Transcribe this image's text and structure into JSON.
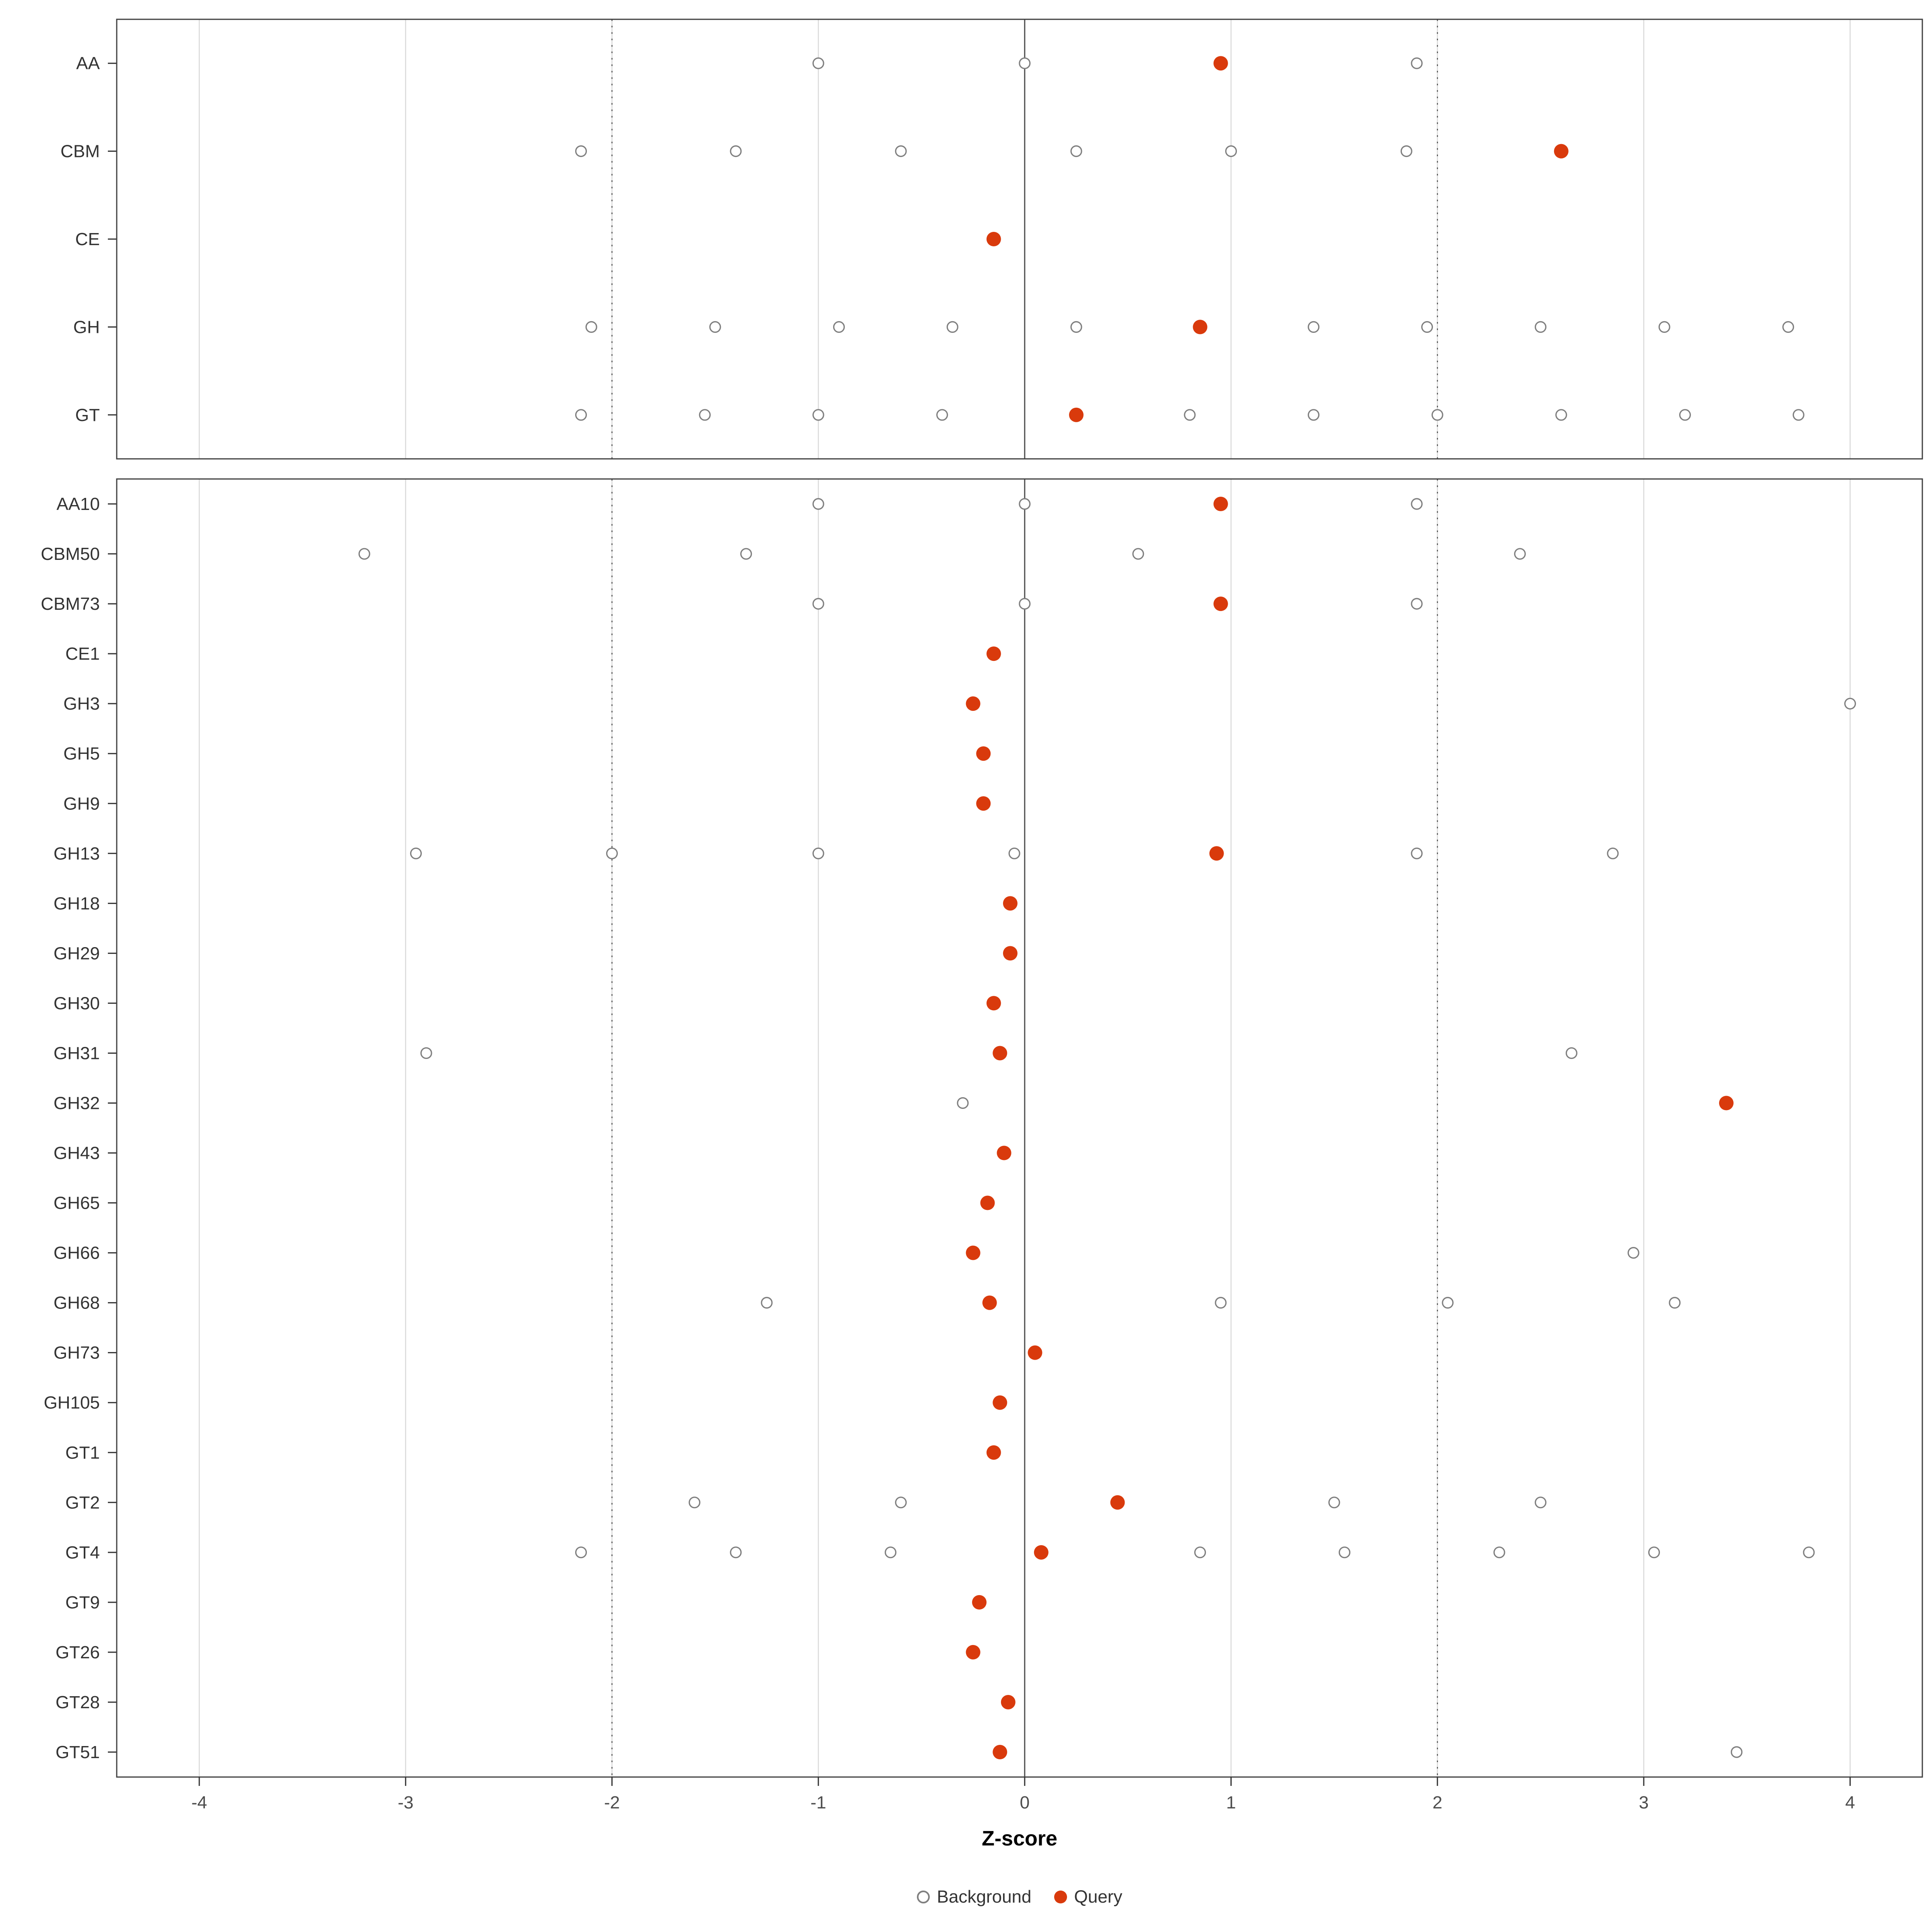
{
  "legend": {
    "background_label": "Background",
    "query_label": "Query"
  },
  "chart_data": {
    "type": "scatter",
    "subtype": "horizontal-dotplot-two-panels",
    "title": "",
    "xlabel": "Z-score",
    "ylabel": "",
    "xlim": [
      -4.4,
      4.35
    ],
    "xticks": [
      -4,
      -3,
      -2,
      -1,
      0,
      1,
      2,
      3,
      4
    ],
    "grid": "vertical-major-only",
    "reference_lines": {
      "solid": [
        0
      ],
      "dotted": [
        -2,
        2
      ]
    },
    "legend_position": "bottom",
    "series_legend": [
      {
        "name": "Background",
        "marker": "open-circle"
      },
      {
        "name": "Query",
        "marker": "filled-circle"
      }
    ],
    "colors": {
      "query": "#d93a0c",
      "background_stroke": "#7f7f7f",
      "grid": "#d9d9d9",
      "panel_border": "#404040",
      "reference_line": "#4d4d4d",
      "axis_text": "#4d4d4d",
      "row_text": "#333333"
    },
    "panels": [
      {
        "name": "family-panel",
        "rows": [
          {
            "label": "AA",
            "background": [
              -1.0,
              0.0,
              1.9
            ],
            "query": [
              0.95
            ]
          },
          {
            "label": "CBM",
            "background": [
              -2.15,
              -1.4,
              -0.6,
              0.25,
              1.0,
              1.85
            ],
            "query": [
              2.6
            ]
          },
          {
            "label": "CE",
            "background": [],
            "query": [
              -0.15
            ]
          },
          {
            "label": "GH",
            "background": [
              -2.1,
              -1.5,
              -0.9,
              -0.35,
              0.25,
              1.4,
              1.95,
              2.5,
              3.1,
              3.7
            ],
            "query": [
              0.85
            ]
          },
          {
            "label": "GT",
            "background": [
              -2.15,
              -1.55,
              -1.0,
              -0.4,
              0.8,
              1.4,
              2.0,
              2.6,
              3.2,
              3.75
            ],
            "query": [
              0.25
            ]
          }
        ]
      },
      {
        "name": "subfamily-panel",
        "rows": [
          {
            "label": "AA10",
            "background": [
              -1.0,
              0.0,
              1.9
            ],
            "query": [
              0.95
            ]
          },
          {
            "label": "CBM50",
            "background": [
              -3.2,
              -1.35,
              0.55,
              2.4
            ],
            "query": []
          },
          {
            "label": "CBM73",
            "background": [
              -1.0,
              0.0,
              1.9
            ],
            "query": [
              0.95
            ]
          },
          {
            "label": "CE1",
            "background": [],
            "query": [
              -0.15
            ]
          },
          {
            "label": "GH3",
            "background": [
              4.0
            ],
            "query": [
              -0.25
            ]
          },
          {
            "label": "GH5",
            "background": [],
            "query": [
              -0.2
            ]
          },
          {
            "label": "GH9",
            "background": [],
            "query": [
              -0.2
            ]
          },
          {
            "label": "GH13",
            "background": [
              -2.95,
              -2.0,
              -1.0,
              -0.05,
              1.9,
              2.85
            ],
            "query": [
              0.93
            ]
          },
          {
            "label": "GH18",
            "background": [],
            "query": [
              -0.07
            ]
          },
          {
            "label": "GH29",
            "background": [],
            "query": [
              -0.07
            ]
          },
          {
            "label": "GH30",
            "background": [],
            "query": [
              -0.15
            ]
          },
          {
            "label": "GH31",
            "background": [
              -2.9,
              2.65
            ],
            "query": [
              -0.12
            ]
          },
          {
            "label": "GH32",
            "background": [
              -0.3
            ],
            "query": [
              3.4
            ]
          },
          {
            "label": "GH43",
            "background": [],
            "query": [
              -0.1
            ]
          },
          {
            "label": "GH65",
            "background": [],
            "query": [
              -0.18
            ]
          },
          {
            "label": "GH66",
            "background": [
              2.95
            ],
            "query": [
              -0.25
            ]
          },
          {
            "label": "GH68",
            "background": [
              -1.25,
              0.95,
              2.05,
              3.15
            ],
            "query": [
              -0.17
            ]
          },
          {
            "label": "GH73",
            "background": [],
            "query": [
              0.05
            ]
          },
          {
            "label": "GH105",
            "background": [],
            "query": [
              -0.12
            ]
          },
          {
            "label": "GT1",
            "background": [],
            "query": [
              -0.15
            ]
          },
          {
            "label": "GT2",
            "background": [
              -1.6,
              -0.6,
              1.5,
              2.5
            ],
            "query": [
              0.45
            ]
          },
          {
            "label": "GT4",
            "background": [
              -2.15,
              -1.4,
              -0.65,
              0.85,
              1.55,
              2.3,
              3.05,
              3.8
            ],
            "query": [
              0.08
            ]
          },
          {
            "label": "GT9",
            "background": [],
            "query": [
              -0.22
            ]
          },
          {
            "label": "GT26",
            "background": [],
            "query": [
              -0.25
            ]
          },
          {
            "label": "GT28",
            "background": [],
            "query": [
              -0.08
            ]
          },
          {
            "label": "GT51",
            "background": [
              3.45
            ],
            "query": [
              -0.12
            ]
          }
        ]
      }
    ]
  }
}
